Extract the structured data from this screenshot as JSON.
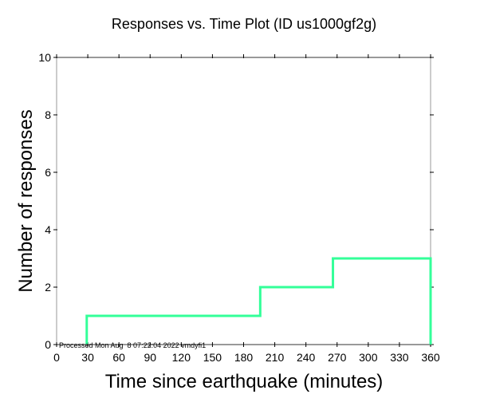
{
  "chart_data": {
    "type": "line",
    "step": true,
    "title": "Responses vs. Time Plot (ID us1000gf2g)",
    "xlabel": "Time since earthquake (minutes)",
    "ylabel": "Number of responses",
    "xlim": [
      0,
      360
    ],
    "ylim": [
      0,
      10
    ],
    "xticks": [
      0,
      30,
      60,
      90,
      120,
      150,
      180,
      210,
      240,
      270,
      300,
      330,
      360
    ],
    "yticks": [
      0,
      2,
      4,
      6,
      8,
      10
    ],
    "grid": false,
    "series": [
      {
        "name": "responses",
        "color": "#33ff99",
        "x": [
          29,
          29,
          196,
          196,
          266,
          266,
          360,
          360
        ],
        "y": [
          0,
          1,
          1,
          2,
          2,
          3,
          3,
          0
        ]
      }
    ],
    "annotation": "Processed Mon Aug  8 07:22:04 2022 vmdyfi1"
  }
}
